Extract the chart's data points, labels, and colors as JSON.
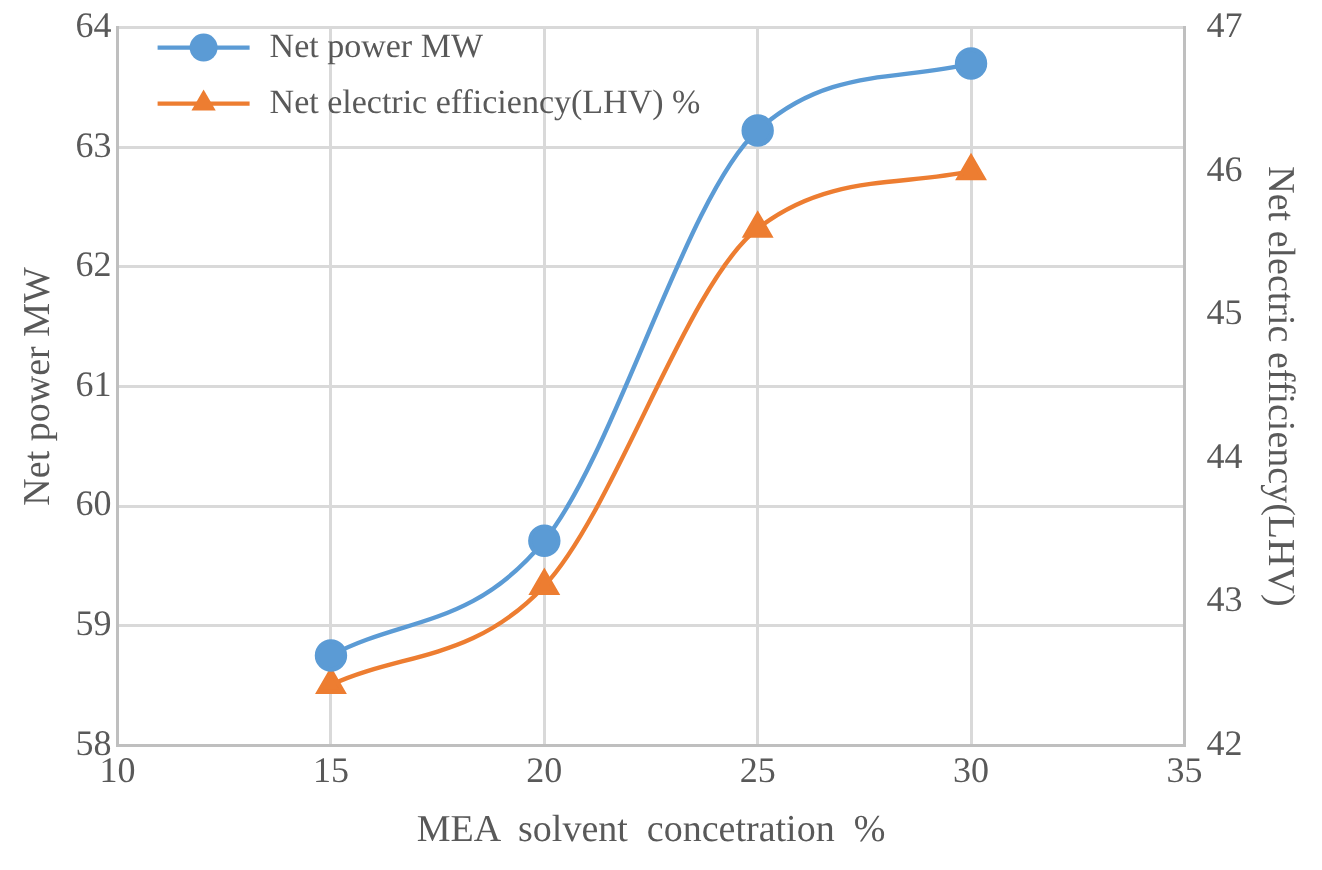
{
  "chart_data": {
    "type": "line",
    "xlabel": "MEA  solvent  concetration  %",
    "ylabel": "Net power MW",
    "y2label": "Net electric efficiency(LHV)",
    "x": [
      15,
      20,
      25,
      30
    ],
    "series": [
      {
        "name": "Net power MW",
        "color": "#5b9bd5",
        "values": [
          58.75,
          59.71,
          63.14,
          63.7
        ],
        "marker": "circle"
      },
      {
        "name": "Net electric efficiency(LHV) %",
        "color": "#ed7d31",
        "values": [
          42.42,
          43.11,
          45.6,
          46.0
        ],
        "axis": "y2",
        "marker": "triangle"
      }
    ],
    "xlim": [
      10,
      35
    ],
    "xticks": [
      10,
      15,
      20,
      25,
      30,
      35
    ],
    "ylim": [
      58,
      64
    ],
    "yticks": [
      58,
      59,
      60,
      61,
      62,
      63,
      64
    ],
    "y2lim": [
      42,
      47
    ],
    "y2ticks": [
      42,
      43,
      44,
      45,
      46,
      47
    ],
    "grid": true,
    "legend": "top left"
  }
}
